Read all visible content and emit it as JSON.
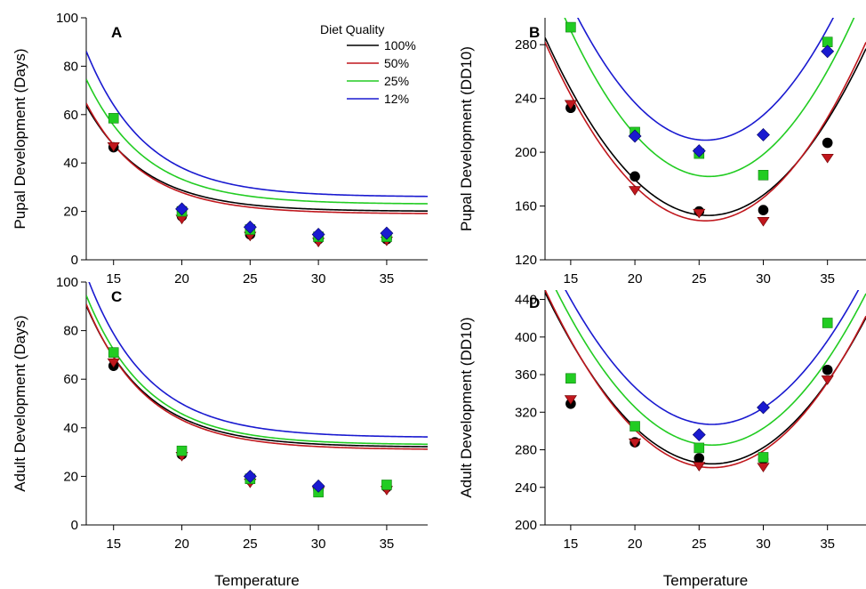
{
  "legend": {
    "title": "Diet Quality",
    "entries": [
      {
        "label": "100%",
        "color": "#000000"
      },
      {
        "label": "50%",
        "color": "#c0171d"
      },
      {
        "label": "25%",
        "color": "#22cc22"
      },
      {
        "label": "12%",
        "color": "#1a1ad0"
      }
    ]
  },
  "chart_data": [
    {
      "type": "scatter",
      "panel": "A",
      "xlabel": "",
      "ylabel": "Pupal Development (Days)",
      "xlim": [
        13,
        38
      ],
      "ylim": [
        0,
        100
      ],
      "xticks": [
        15,
        20,
        25,
        30,
        35
      ],
      "yticks": [
        0,
        20,
        40,
        60,
        80,
        100
      ],
      "fit": "exponential",
      "series": [
        {
          "name": "100%",
          "color": "#000000",
          "marker": "circle",
          "x": [
            15,
            20,
            25,
            30,
            35
          ],
          "y": [
            46.5,
            18,
            10.5,
            8.5,
            8.5
          ],
          "fit_params": {
            "a": 1045,
            "k": 0.23,
            "c": 10
          }
        },
        {
          "name": "50%",
          "color": "#c0171d",
          "marker": "triangle-down",
          "x": [
            15,
            20,
            25,
            30,
            35
          ],
          "y": [
            47,
            17,
            10,
            7.5,
            8
          ],
          "fit_params": {
            "a": 1110,
            "k": 0.235,
            "c": 9.5
          }
        },
        {
          "name": "25%",
          "color": "#22cc22",
          "marker": "square",
          "x": [
            15,
            20,
            25,
            30,
            35
          ],
          "y": [
            58.5,
            20,
            12.5,
            9.5,
            9.5
          ],
          "fit_params": {
            "a": 1235,
            "k": 0.23,
            "c": 11.5
          }
        },
        {
          "name": "12%",
          "color": "#1a1ad0",
          "marker": "diamond",
          "x": [
            20,
            25,
            30,
            35
          ],
          "y": [
            21,
            13.5,
            10.5,
            11
          ],
          "fit_params": {
            "a": 1440,
            "k": 0.23,
            "c": 13
          }
        }
      ]
    },
    {
      "type": "scatter",
      "panel": "B",
      "xlabel": "Temperature",
      "ylabel": "Pupal Development (DD10)",
      "xlim": [
        13,
        38
      ],
      "ylim": [
        120,
        300
      ],
      "xticks": [
        15,
        20,
        25,
        30,
        35
      ],
      "yticks": [
        120,
        160,
        200,
        240,
        280
      ],
      "fit": "quadratic",
      "series": [
        {
          "name": "100%",
          "color": "#000000",
          "marker": "circle",
          "x": [
            15,
            20,
            25,
            30,
            35
          ],
          "y": [
            233,
            182,
            156,
            157,
            207
          ],
          "fit_params": {
            "vertex_x": 25.7,
            "min": 153,
            "a": 0.82
          }
        },
        {
          "name": "50%",
          "color": "#c0171d",
          "marker": "triangle-down",
          "x": [
            15,
            20,
            25,
            30,
            35
          ],
          "y": [
            236,
            172,
            155,
            149,
            196
          ],
          "fit_params": {
            "vertex_x": 25.5,
            "min": 149,
            "a": 0.85
          }
        },
        {
          "name": "25%",
          "color": "#22cc22",
          "marker": "square",
          "x": [
            15,
            20,
            25,
            30,
            35
          ],
          "y": [
            293,
            215,
            199,
            183,
            282
          ],
          "fit_params": {
            "vertex_x": 25.8,
            "min": 182,
            "a": 0.93
          }
        },
        {
          "name": "12%",
          "color": "#1a1ad0",
          "marker": "diamond",
          "x": [
            20,
            25,
            30,
            35
          ],
          "y": [
            212,
            201,
            213,
            275
          ],
          "fit_params": {
            "vertex_x": 25.5,
            "min": 209,
            "a": 0.92
          }
        }
      ]
    },
    {
      "type": "scatter",
      "panel": "C",
      "xlabel": "Temperature",
      "ylabel": "Adult Development (Days)",
      "xlim": [
        13,
        38
      ],
      "ylim": [
        0,
        100
      ],
      "xticks": [
        15,
        20,
        25,
        30,
        35
      ],
      "yticks": [
        0,
        20,
        40,
        60,
        80,
        100
      ],
      "fit": "exponential",
      "series": [
        {
          "name": "100%",
          "color": "#000000",
          "marker": "circle",
          "x": [
            15,
            20,
            25,
            30,
            35
          ],
          "y": [
            65.5,
            29,
            18.5,
            14.5,
            15.5
          ],
          "fit_params": {
            "a": 1375,
            "k": 0.225,
            "c": 16
          }
        },
        {
          "name": "50%",
          "color": "#c0171d",
          "marker": "triangle-down",
          "x": [
            15,
            20,
            25,
            30,
            35
          ],
          "y": [
            67,
            28.5,
            17.5,
            14,
            14.5
          ],
          "fit_params": {
            "a": 1420,
            "k": 0.227,
            "c": 15.5
          }
        },
        {
          "name": "25%",
          "color": "#22cc22",
          "marker": "square",
          "x": [
            15,
            20,
            25,
            30,
            35
          ],
          "y": [
            71,
            30.5,
            19,
            13.5,
            16.5
          ],
          "fit_params": {
            "a": 1450,
            "k": 0.225,
            "c": 16.5
          }
        },
        {
          "name": "12%",
          "color": "#1a1ad0",
          "marker": "diamond",
          "x": [
            25,
            30
          ],
          "y": [
            20,
            16
          ],
          "fit_params": {
            "a": 1580,
            "k": 0.225,
            "c": 18
          }
        }
      ]
    },
    {
      "type": "scatter",
      "panel": "D",
      "xlabel": "Temperature",
      "ylabel": "Adult Development (DD10)",
      "xlim": [
        13,
        38
      ],
      "ylim": [
        200,
        450
      ],
      "xticks": [
        15,
        20,
        25,
        30,
        35
      ],
      "yticks": [
        200,
        240,
        280,
        320,
        360,
        400,
        440
      ],
      "fit": "quadratic",
      "series": [
        {
          "name": "100%",
          "color": "#000000",
          "marker": "circle",
          "x": [
            15,
            20,
            25,
            30,
            35
          ],
          "y": [
            329,
            288,
            271,
            270,
            365
          ],
          "fit_params": {
            "vertex_x": 26,
            "min": 265,
            "a": 1.08
          }
        },
        {
          "name": "50%",
          "color": "#c0171d",
          "marker": "triangle-down",
          "x": [
            15,
            20,
            25,
            30,
            35
          ],
          "y": [
            334,
            288,
            263,
            262,
            355
          ],
          "fit_params": {
            "vertex_x": 26,
            "min": 261,
            "a": 1.12
          }
        },
        {
          "name": "25%",
          "color": "#22cc22",
          "marker": "square",
          "x": [
            15,
            20,
            25,
            30,
            35
          ],
          "y": [
            356,
            305,
            282,
            272,
            415
          ],
          "fit_params": {
            "vertex_x": 26,
            "min": 285,
            "a": 1.12
          }
        },
        {
          "name": "12%",
          "color": "#1a1ad0",
          "marker": "diamond",
          "x": [
            25,
            30
          ],
          "y": [
            296,
            325
          ],
          "fit_params": {
            "vertex_x": 26,
            "min": 307,
            "a": 1.1
          }
        }
      ]
    }
  ]
}
